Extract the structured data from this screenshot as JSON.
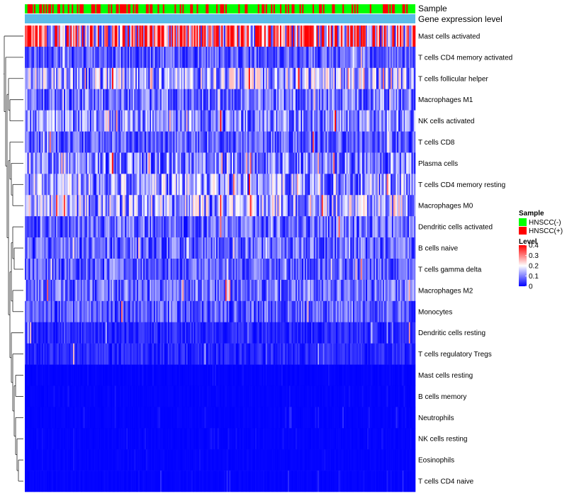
{
  "chart_data": {
    "type": "heatmap",
    "title": "",
    "annotation_labels": {
      "sample": "Sample",
      "gene_expression": "Gene expression level"
    },
    "rows": [
      "Mast cells activated",
      "T cells CD4 memory activated",
      "T cells follicular helper",
      "Macrophages M1",
      "NK cells activated",
      "T cells CD8",
      "Plasma cells",
      "T cells CD4 memory resting",
      "Macrophages M0",
      "Dendritic cells activated",
      "B cells naive",
      "T cells gamma delta",
      "Macrophages M2",
      "Monocytes",
      "Dendritic cells resting",
      "T cells regulatory  Tregs",
      "Mast cells resting",
      "B cells memory",
      "Neutrophils",
      "NK cells resting",
      "Eosinophils",
      "T cells CD4 naive"
    ],
    "row_mean_levels": [
      0.28,
      0.07,
      0.13,
      0.09,
      0.1,
      0.07,
      0.1,
      0.12,
      0.13,
      0.08,
      0.08,
      0.07,
      0.08,
      0.07,
      0.03,
      0.03,
      0.01,
      0.01,
      0.02,
      0.01,
      0.01,
      0.02
    ],
    "sample_count": 300,
    "hnscc_pos_fraction": 0.3,
    "legend_sample": {
      "title": "Sample",
      "entries": [
        {
          "label": "HNSCC(-)",
          "color": "#00ff00"
        },
        {
          "label": "HNSCC(+)",
          "color": "#ff0000"
        }
      ]
    },
    "legend_level": {
      "title": "Level",
      "ticks": [
        "0.4",
        "0.3",
        "0.2",
        "0.1",
        "0"
      ],
      "tick_values": [
        0.4,
        0.3,
        0.2,
        0.1,
        0
      ],
      "min": 0,
      "max": 0.4
    },
    "colors": {
      "low": "#0000ff",
      "mid": "#ffffff",
      "high": "#ff0000",
      "gene_expression_bar": "#5bbbe8"
    }
  }
}
